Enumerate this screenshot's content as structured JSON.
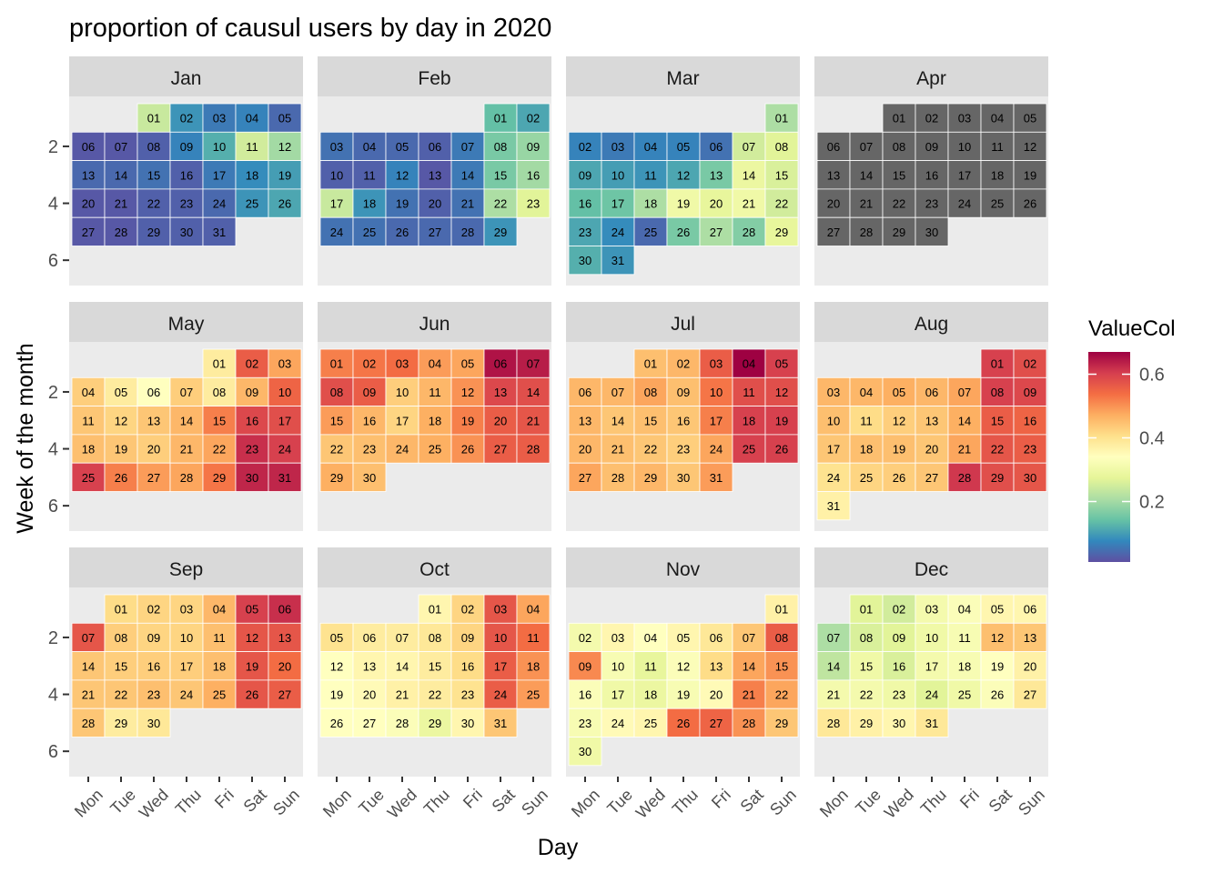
{
  "chart_data": {
    "type": "heatmap",
    "title": "proportion of causul users by day in 2020",
    "xlabel": "Day",
    "ylabel": "Week of the month",
    "x_ticks": [
      "Mon",
      "Tue",
      "Wed",
      "Thu",
      "Fri",
      "Sat",
      "Sun"
    ],
    "y_ticks": [
      "2",
      "4",
      "6"
    ],
    "legend": {
      "title": "ValueCol",
      "position": "right",
      "range": [
        0.01,
        0.67
      ],
      "ticks": [
        0.2,
        0.4,
        0.6
      ],
      "tick_labels": [
        "0.2",
        "0.4",
        "0.6"
      ],
      "colors": [
        "#5E4FA2",
        "#3288BD",
        "#66C2A5",
        "#ABDDA4",
        "#E6F598",
        "#FFFFBF",
        "#FEE08B",
        "#FDAE61",
        "#F46D43",
        "#D53E4F",
        "#9E0142"
      ],
      "na_color": "#666666"
    },
    "panels": [
      {
        "month": "Jan",
        "first_weekday": 2,
        "values": [
          0.24,
          0.09,
          0.06,
          0.07,
          0.04,
          0.02,
          0.02,
          0.03,
          0.07,
          0.12,
          0.25,
          0.2,
          0.04,
          0.04,
          0.05,
          0.03,
          0.06,
          0.08,
          0.1,
          0.02,
          0.02,
          0.03,
          0.03,
          0.04,
          0.09,
          0.11,
          0.02,
          0.02,
          0.03,
          0.03,
          0.03
        ]
      },
      {
        "month": "Feb",
        "first_weekday": 5,
        "values": [
          0.14,
          0.11,
          0.05,
          0.04,
          0.04,
          0.03,
          0.06,
          0.16,
          0.19,
          0.03,
          0.03,
          0.07,
          0.02,
          0.06,
          0.16,
          0.2,
          0.24,
          0.09,
          0.05,
          0.03,
          0.05,
          0.21,
          0.27,
          0.05,
          0.05,
          0.04,
          0.04,
          0.04,
          0.09
        ]
      },
      {
        "month": "Mar",
        "first_weekday": 6,
        "values": [
          0.21,
          0.07,
          0.06,
          0.07,
          0.07,
          0.05,
          0.25,
          0.27,
          0.11,
          0.1,
          0.09,
          0.11,
          0.16,
          0.29,
          0.26,
          0.14,
          0.15,
          0.21,
          0.3,
          0.28,
          0.3,
          0.25,
          0.11,
          0.08,
          0.04,
          0.16,
          0.21,
          0.17,
          0.28,
          0.12,
          0.09
        ]
      },
      {
        "month": "Apr",
        "first_weekday": 2,
        "values": []
      },
      {
        "month": "May",
        "first_weekday": 4,
        "values": [
          0.38,
          0.56,
          0.48,
          0.43,
          0.38,
          0.34,
          0.43,
          0.38,
          0.46,
          0.55,
          0.44,
          0.42,
          0.44,
          0.46,
          0.52,
          0.59,
          0.58,
          0.45,
          0.44,
          0.43,
          0.46,
          0.48,
          0.62,
          0.6,
          0.6,
          0.52,
          0.49,
          0.48,
          0.53,
          0.63,
          0.63
        ]
      },
      {
        "month": "Jun",
        "first_weekday": 0,
        "values": [
          0.52,
          0.53,
          0.54,
          0.49,
          0.48,
          0.65,
          0.64,
          0.58,
          0.56,
          0.43,
          0.46,
          0.5,
          0.59,
          0.58,
          0.49,
          0.46,
          0.42,
          0.47,
          0.52,
          0.56,
          0.57,
          0.44,
          0.45,
          0.46,
          0.47,
          0.5,
          0.56,
          0.56,
          0.47,
          0.45
        ]
      },
      {
        "month": "Jul",
        "first_weekday": 2,
        "values": [
          0.45,
          0.46,
          0.56,
          0.67,
          0.6,
          0.46,
          0.46,
          0.48,
          0.45,
          0.53,
          0.58,
          0.58,
          0.46,
          0.44,
          0.45,
          0.44,
          0.52,
          0.6,
          0.6,
          0.46,
          0.45,
          0.44,
          0.43,
          0.48,
          0.6,
          0.6,
          0.48,
          0.45,
          0.46,
          0.44,
          0.49
        ]
      },
      {
        "month": "Aug",
        "first_weekday": 5,
        "values": [
          0.6,
          0.58,
          0.46,
          0.46,
          0.47,
          0.46,
          0.48,
          0.6,
          0.59,
          0.45,
          0.41,
          0.43,
          0.44,
          0.47,
          0.56,
          0.55,
          0.44,
          0.45,
          0.45,
          0.44,
          0.48,
          0.57,
          0.56,
          0.4,
          0.42,
          0.43,
          0.44,
          0.61,
          0.58,
          0.57,
          0.37
        ]
      },
      {
        "month": "Sep",
        "first_weekday": 1,
        "values": [
          0.41,
          0.42,
          0.42,
          0.46,
          0.6,
          0.62,
          0.57,
          0.43,
          0.42,
          0.42,
          0.45,
          0.57,
          0.57,
          0.44,
          0.43,
          0.43,
          0.43,
          0.45,
          0.57,
          0.54,
          0.44,
          0.44,
          0.45,
          0.44,
          0.47,
          0.57,
          0.56,
          0.44,
          0.38,
          0.39
        ]
      },
      {
        "month": "Oct",
        "first_weekday": 3,
        "values": [
          0.36,
          0.42,
          0.57,
          0.48,
          0.4,
          0.38,
          0.38,
          0.39,
          0.42,
          0.57,
          0.54,
          0.34,
          0.36,
          0.36,
          0.38,
          0.41,
          0.56,
          0.5,
          0.34,
          0.35,
          0.37,
          0.38,
          0.4,
          0.56,
          0.49,
          0.34,
          0.34,
          0.33,
          0.29,
          0.36,
          0.44
        ]
      },
      {
        "month": "Nov",
        "first_weekday": 6,
        "values": [
          0.37,
          0.31,
          0.36,
          0.34,
          0.36,
          0.39,
          0.44,
          0.56,
          0.51,
          0.32,
          0.28,
          0.33,
          0.41,
          0.48,
          0.5,
          0.33,
          0.3,
          0.29,
          0.32,
          0.35,
          0.52,
          0.48,
          0.32,
          0.35,
          0.36,
          0.54,
          0.55,
          0.5,
          0.44,
          0.3
        ]
      },
      {
        "month": "Dec",
        "first_weekday": 1,
        "values": [
          0.27,
          0.25,
          0.31,
          0.33,
          0.36,
          0.36,
          0.21,
          0.26,
          0.27,
          0.3,
          0.32,
          0.45,
          0.44,
          0.23,
          0.3,
          0.26,
          0.31,
          0.32,
          0.34,
          0.37,
          0.31,
          0.31,
          0.3,
          0.27,
          0.3,
          0.33,
          0.39,
          0.39,
          0.37,
          0.36,
          0.39
        ]
      }
    ]
  }
}
